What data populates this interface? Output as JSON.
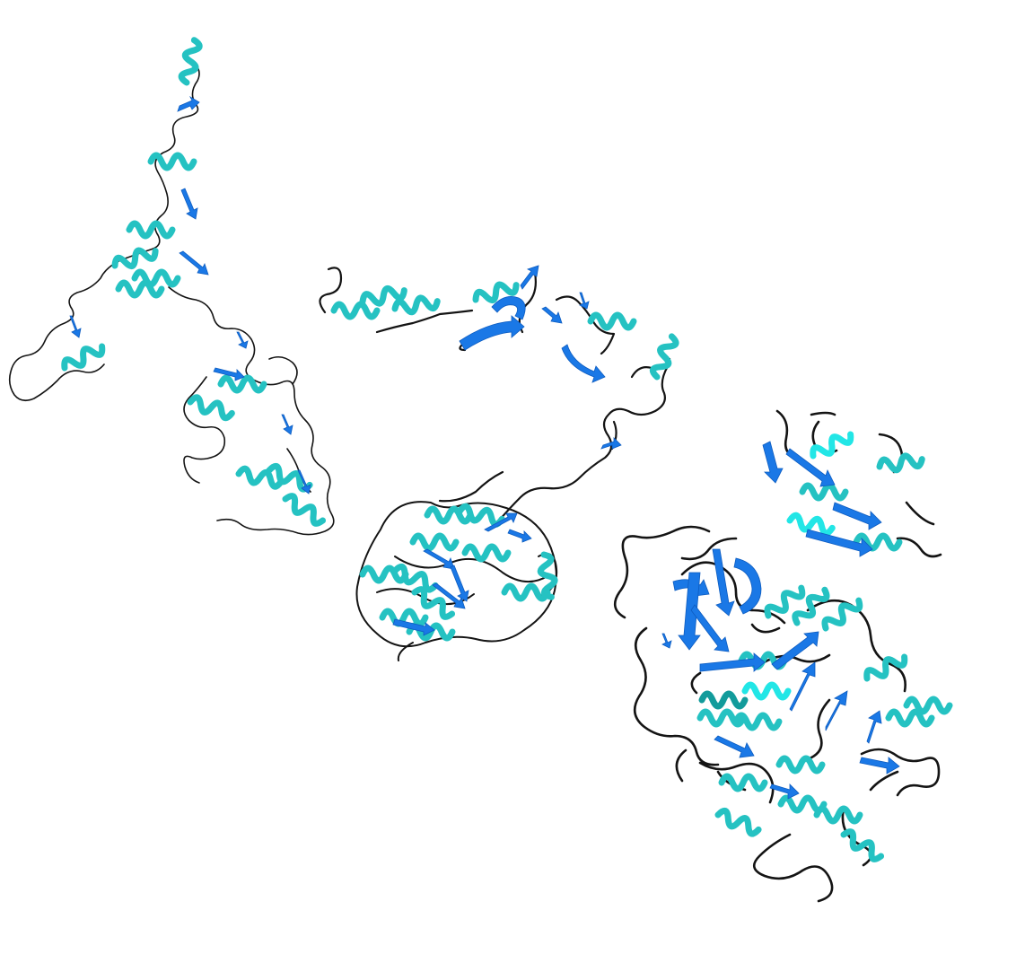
{
  "image": {
    "background_color": "#ffffff"
  },
  "palette": {
    "helix": "#25c2c2",
    "helix_light": "#22e6e6",
    "helix_dark": "#129b9b",
    "sheet": "#1a78e6",
    "sheet_dark": "#0d5cc0",
    "coil": "#141414"
  },
  "structures": [
    {
      "id": "left-extended-protein"
    },
    {
      "id": "middle-protein"
    },
    {
      "id": "right-compact-protein"
    }
  ]
}
